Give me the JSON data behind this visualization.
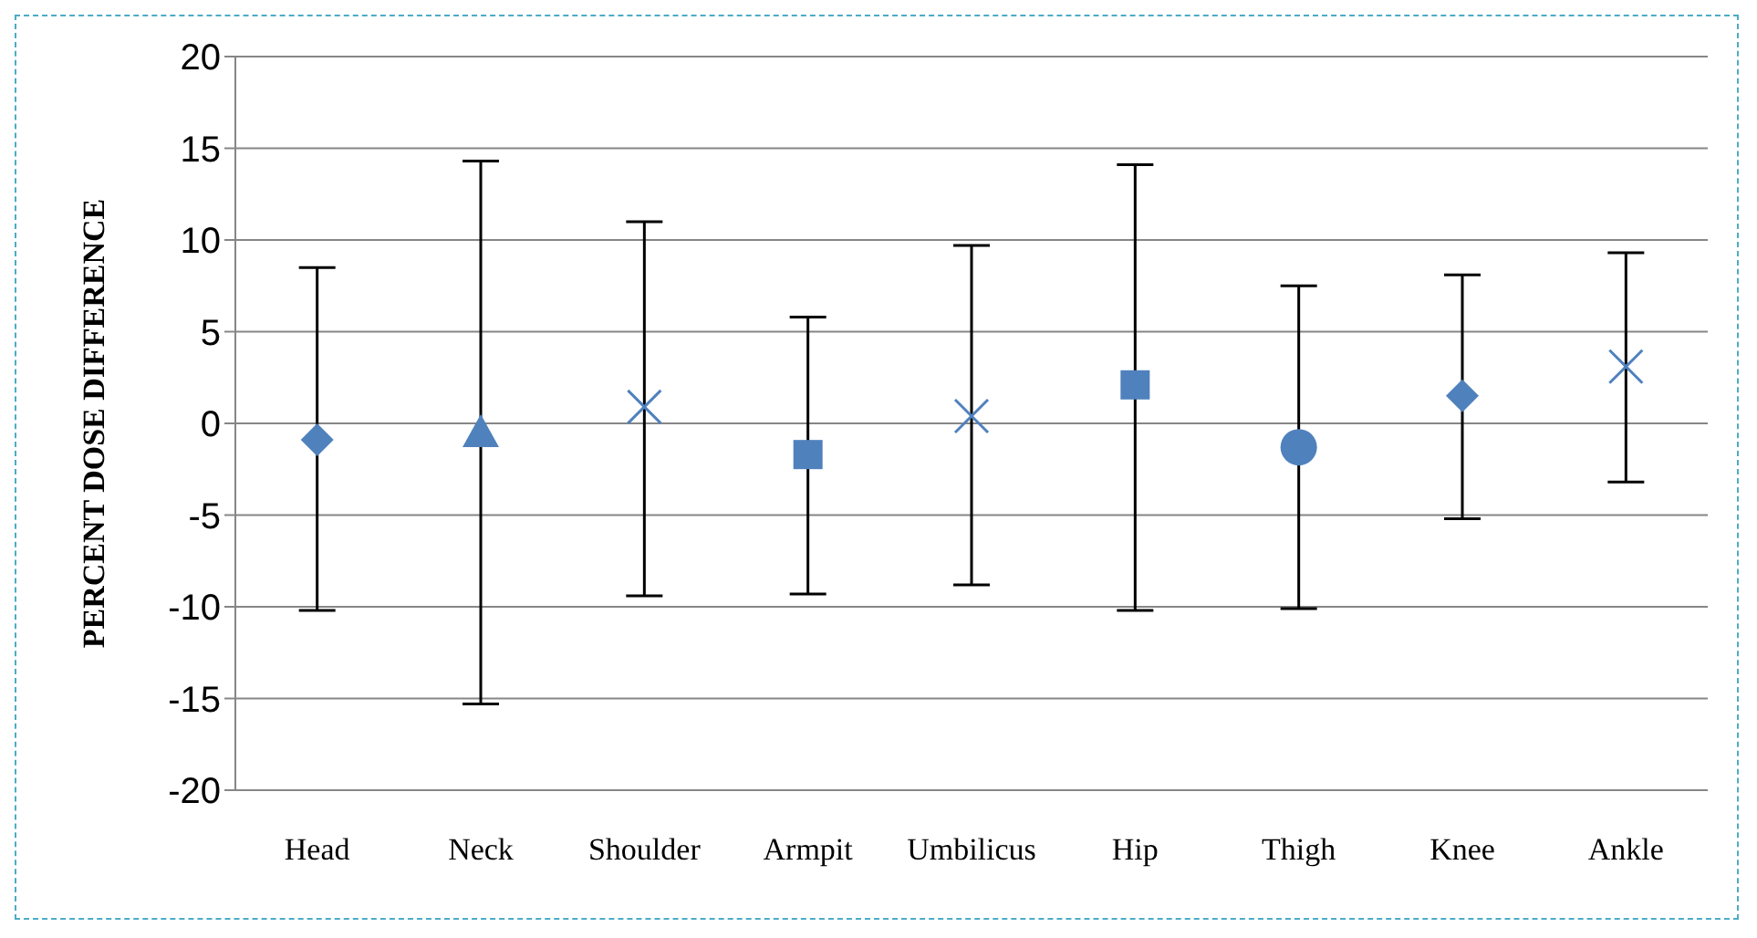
{
  "chart_data": {
    "type": "scatter",
    "ylabel": "PERCENT DOSE DIFFERENCE",
    "categories": [
      "Head",
      "Neck",
      "Shoulder",
      "Armpit",
      "Umbilicus",
      "Hip",
      "Thigh",
      "Knee",
      "Ankle"
    ],
    "series": [
      {
        "color": "#4f81bd",
        "marker": "diamond",
        "values": [
          -0.9,
          null,
          null,
          null,
          null,
          null,
          null,
          null,
          null
        ],
        "errors": [
          [
            -10.2,
            8.5
          ],
          null,
          null,
          null,
          null,
          null,
          null,
          null,
          null
        ]
      },
      {
        "color": "#4f81bd",
        "marker": "triangle",
        "values": [
          null,
          -0.5,
          null,
          null,
          null,
          null,
          null,
          null,
          null
        ],
        "errors": [
          null,
          [
            -15.3,
            14.3
          ],
          null,
          null,
          null,
          null,
          null,
          null,
          null
        ]
      },
      {
        "color": "#4f81bd",
        "marker": "cross",
        "values": [
          null,
          null,
          0.9,
          null,
          null,
          null,
          null,
          null,
          null
        ],
        "errors": [
          null,
          null,
          [
            -9.4,
            11
          ],
          null,
          null,
          null,
          null,
          null,
          null
        ]
      },
      {
        "color": "#4f81bd",
        "marker": "square",
        "values": [
          null,
          null,
          null,
          -1.7,
          null,
          null,
          null,
          null,
          null
        ],
        "errors": [
          null,
          null,
          null,
          [
            -9.3,
            5.8
          ],
          null,
          null,
          null,
          null,
          null
        ]
      },
      {
        "color": "#4f81bd",
        "marker": "cross",
        "values": [
          null,
          null,
          null,
          null,
          0.4,
          null,
          null,
          null,
          null
        ],
        "errors": [
          null,
          null,
          null,
          null,
          [
            -8.8,
            9.7
          ],
          null,
          null,
          null,
          null
        ]
      },
      {
        "color": "#4f81bd",
        "marker": "square",
        "values": [
          null,
          null,
          null,
          null,
          null,
          2.1,
          null,
          null,
          null
        ],
        "errors": [
          null,
          null,
          null,
          null,
          null,
          [
            -10.2,
            14.1
          ],
          null,
          null,
          null
        ]
      },
      {
        "color": "#4f81bd",
        "marker": "circle",
        "values": [
          null,
          null,
          null,
          null,
          null,
          null,
          -1.3,
          null,
          null
        ],
        "errors": [
          null,
          null,
          null,
          null,
          null,
          null,
          [
            -10.1,
            7.5
          ],
          null,
          null
        ]
      },
      {
        "color": "#4f81bd",
        "marker": "diamond",
        "values": [
          null,
          null,
          null,
          null,
          null,
          null,
          null,
          1.5,
          null
        ],
        "errors": [
          null,
          null,
          null,
          null,
          null,
          null,
          null,
          [
            -5.2,
            8.1
          ],
          null
        ]
      },
      {
        "color": "#4f81bd",
        "marker": "cross",
        "values": [
          null,
          null,
          null,
          null,
          null,
          null,
          null,
          null,
          3.1
        ],
        "errors": [
          null,
          null,
          null,
          null,
          null,
          null,
          null,
          null,
          [
            -3.2,
            9.3
          ]
        ]
      }
    ],
    "ylim": [
      -20,
      20
    ],
    "yticks": [
      -20,
      -15,
      -10,
      -5,
      0,
      5,
      10,
      15,
      20
    ],
    "grid": "y",
    "legend": false
  }
}
